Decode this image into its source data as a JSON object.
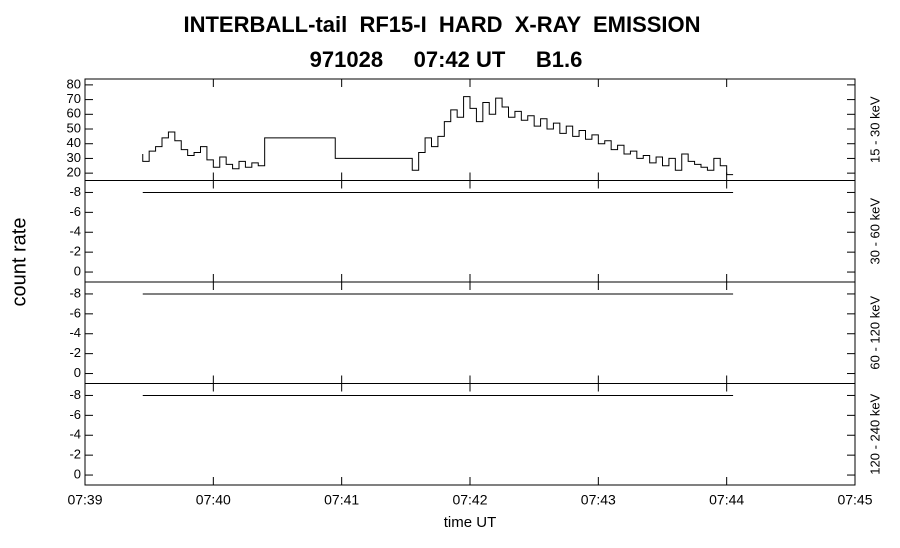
{
  "chart_data": {
    "type": "line",
    "step": true,
    "title": "INTERBALL-tail  RF15-I  HARD  X-RAY  EMISSION",
    "subtitle": "971028     07:42 UT     B1.6",
    "ylabel": "count rate",
    "xlabel": "time UT",
    "xlim": [
      0,
      6
    ],
    "xticks": [
      {
        "value": 0,
        "label": "07:39"
      },
      {
        "value": 1,
        "label": "07:40"
      },
      {
        "value": 2,
        "label": "07:41"
      },
      {
        "value": 3,
        "label": "07:42"
      },
      {
        "value": 4,
        "label": "07:43"
      },
      {
        "value": 5,
        "label": "07:44"
      },
      {
        "value": 6,
        "label": "07:45"
      }
    ],
    "panels": [
      {
        "label": "15 - 30 keV",
        "ylim": [
          15,
          84
        ],
        "yticks": [
          20,
          30,
          40,
          50,
          60,
          70,
          80
        ],
        "series": [
          {
            "color": "#000000",
            "x": [
              0.45,
              0.5,
              0.55,
              0.6,
              0.65,
              0.7,
              0.75,
              0.8,
              0.85,
              0.9,
              0.95,
              1.0,
              1.05,
              1.1,
              1.15,
              1.2,
              1.25,
              1.3,
              1.35,
              1.4,
              1.95,
              2.55,
              2.6,
              2.65,
              2.7,
              2.75,
              2.8,
              2.85,
              2.9,
              2.95,
              3.0,
              3.05,
              3.1,
              3.15,
              3.2,
              3.25,
              3.3,
              3.35,
              3.4,
              3.45,
              3.5,
              3.55,
              3.6,
              3.65,
              3.7,
              3.75,
              3.8,
              3.85,
              3.9,
              3.95,
              4.0,
              4.05,
              4.1,
              4.15,
              4.2,
              4.25,
              4.3,
              4.35,
              4.4,
              4.45,
              4.5,
              4.55,
              4.6,
              4.65,
              4.7,
              4.75,
              4.8,
              4.85,
              4.9,
              4.95,
              5.0,
              5.05
            ],
            "values": [
              33,
              28,
              35,
              38,
              44,
              48,
              42,
              36,
              32,
              34,
              38,
              29,
              24,
              31,
              26,
              23,
              28,
              24,
              27,
              25,
              44,
              30,
              22,
              34,
              44,
              38,
              45,
              55,
              63,
              58,
              72,
              64,
              55,
              68,
              60,
              71,
              65,
              58,
              62,
              56,
              59,
              52,
              57,
              50,
              54,
              47,
              52,
              45,
              49,
              43,
              46,
              40,
              42,
              36,
              39,
              33,
              35,
              30,
              32,
              27,
              31,
              25,
              30,
              22,
              33,
              28,
              26,
              24,
              22,
              30,
              25,
              19
            ]
          }
        ]
      },
      {
        "label": "30 - 60 keV",
        "ylim": [
          1,
          -9.2
        ],
        "yticks": [
          -8,
          -6,
          -4,
          -2,
          0
        ],
        "series": [
          {
            "color": "#000000",
            "x": [
              0.45,
              5.05
            ],
            "values": [
              -8,
              -8
            ]
          }
        ]
      },
      {
        "label": "60 - 120 keV",
        "ylim": [
          1,
          -9.2
        ],
        "yticks": [
          -8,
          -6,
          -4,
          -2,
          0
        ],
        "series": [
          {
            "color": "#000000",
            "x": [
              0.45,
              5.05
            ],
            "values": [
              -8,
              -8
            ]
          }
        ]
      },
      {
        "label": "120 - 240 keV",
        "ylim": [
          1,
          -9.2
        ],
        "yticks": [
          -8,
          -6,
          -4,
          -2,
          0
        ],
        "series": [
          {
            "color": "#000000",
            "x": [
              0.45,
              5.05
            ],
            "values": [
              -8,
              -8
            ]
          }
        ]
      }
    ]
  }
}
